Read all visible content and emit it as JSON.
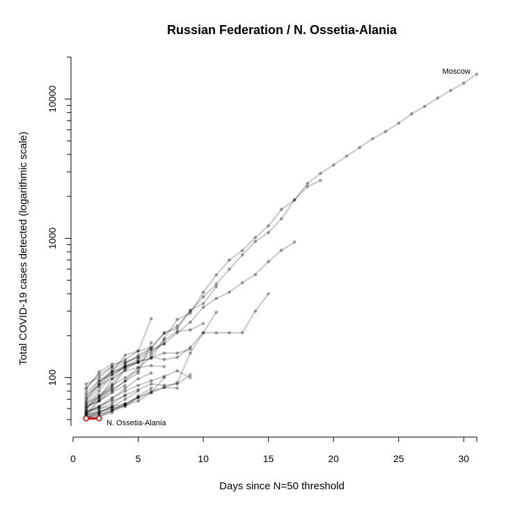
{
  "chart_data": {
    "type": "line",
    "title": "Russian Federation / N. Ossetia-Alania",
    "xlabel": "Days since N=50 threshold",
    "ylabel": "Total COVID-19 cases detected (logarithmic scale)",
    "y_scale": "log",
    "xlim": [
      0,
      31
    ],
    "ylim": [
      45,
      20000
    ],
    "x_ticks": [
      "0",
      "5",
      "10",
      "15",
      "20",
      "25",
      "30"
    ],
    "y_ticks": [
      "100",
      "1000",
      "10000"
    ],
    "grid": false,
    "highlight_color": "#cc0000",
    "series_color": "#000000",
    "annotations": {
      "top_series": "Moscow",
      "highlight_series": "N. Ossetia-Alania"
    },
    "series": [
      {
        "name": "Moscow",
        "x": [
          1,
          2,
          3,
          4,
          5,
          6,
          7,
          8,
          9,
          10,
          11,
          12,
          13,
          14,
          15,
          16,
          17,
          18,
          19,
          20,
          21,
          22,
          23,
          24,
          25,
          26,
          27,
          28,
          29,
          30,
          31
        ],
        "y": [
          53,
          68,
          86,
          114,
          131,
          137,
          191,
          262,
          290,
          410,
          546,
          698,
          817,
          1014,
          1226,
          1613,
          1880,
          2475,
          2923,
          3357,
          3893,
          4484,
          5181,
          5841,
          6698,
          7822,
          8852,
          10158,
          11513,
          13002,
          15057
        ]
      },
      {
        "name": "N. Ossetia-Alania",
        "highlight": true,
        "x": [
          1,
          2
        ],
        "y": [
          51,
          51
        ]
      },
      {
        "x": [
          1,
          2,
          3,
          4,
          5,
          6,
          7,
          8,
          9,
          10,
          11,
          12,
          13,
          14,
          15,
          16,
          17,
          18,
          19
        ],
        "y": [
          55,
          70,
          98,
          125,
          145,
          162,
          208,
          235,
          300,
          380,
          470,
          600,
          760,
          950,
          1100,
          1380,
          1890,
          2350,
          2600
        ]
      },
      {
        "x": [
          1,
          2,
          3,
          4,
          5,
          6,
          7,
          8,
          9,
          10,
          11,
          12,
          13,
          14,
          15,
          16,
          17
        ],
        "y": [
          60,
          80,
          105,
          120,
          135,
          155,
          175,
          210,
          250,
          320,
          370,
          410,
          480,
          550,
          680,
          820,
          940
        ]
      },
      {
        "x": [
          1,
          2,
          3,
          4,
          5,
          6,
          7,
          8,
          9,
          10,
          11,
          12,
          13,
          14,
          15
        ],
        "y": [
          52,
          56,
          62,
          65,
          72,
          80,
          85,
          92,
          150,
          210,
          210,
          210,
          210,
          300,
          400
        ]
      },
      {
        "x": [
          1,
          2,
          3,
          4,
          5,
          6,
          7,
          8,
          9,
          10,
          11
        ],
        "y": [
          65,
          85,
          110,
          145,
          155,
          165,
          210,
          225,
          305,
          340,
          450
        ]
      },
      {
        "x": [
          1,
          2,
          3,
          4,
          5,
          6,
          7,
          8,
          9,
          10
        ],
        "y": [
          58,
          75,
          90,
          118,
          130,
          148,
          185,
          215,
          220,
          245
        ]
      },
      {
        "x": [
          1,
          2,
          3,
          4,
          5,
          6,
          7,
          8,
          9,
          10,
          11
        ],
        "y": [
          62,
          68,
          80,
          95,
          118,
          140,
          135,
          140,
          165,
          210,
          295
        ]
      },
      {
        "x": [
          1,
          2,
          3,
          4,
          5,
          6,
          7,
          8,
          9
        ],
        "y": [
          72,
          95,
          105,
          120,
          128,
          140,
          150,
          150,
          160
        ]
      },
      {
        "x": [
          1,
          2,
          3,
          4,
          5,
          6,
          7,
          8,
          9
        ],
        "y": [
          56,
          62,
          72,
          80,
          88,
          95,
          102,
          112,
          100
        ]
      },
      {
        "x": [
          1,
          2,
          3,
          4,
          5,
          6,
          7,
          8,
          9
        ],
        "y": [
          55,
          60,
          65,
          75,
          82,
          90,
          88,
          90,
          105
        ]
      },
      {
        "x": [
          1,
          2,
          3,
          4,
          5,
          6,
          7,
          8
        ],
        "y": [
          50,
          52,
          58,
          64,
          72,
          78,
          85,
          84
        ]
      },
      {
        "x": [
          1,
          2,
          3,
          4,
          5,
          6,
          7
        ],
        "y": [
          68,
          90,
          115,
          128,
          140,
          160,
          175
        ]
      },
      {
        "x": [
          1,
          2,
          3,
          4,
          5,
          6,
          7
        ],
        "y": [
          75,
          88,
          98,
          112,
          118,
          122,
          120
        ]
      },
      {
        "x": [
          1,
          2,
          3,
          4,
          5,
          6,
          7
        ],
        "y": [
          54,
          57,
          60,
          63,
          68,
          78,
          100
        ]
      },
      {
        "x": [
          1,
          2,
          3,
          4,
          5,
          6
        ],
        "y": [
          90,
          100,
          120,
          135,
          155,
          265
        ]
      },
      {
        "x": [
          1,
          2,
          3,
          4,
          5,
          6
        ],
        "y": [
          60,
          72,
          82,
          94,
          108,
          178
        ]
      },
      {
        "x": [
          1,
          2,
          3,
          4,
          5,
          6
        ],
        "y": [
          56,
          62,
          70,
          84,
          98,
          108
        ]
      },
      {
        "x": [
          1,
          2,
          3,
          4,
          5,
          6
        ],
        "y": [
          52,
          54,
          58,
          64,
          74,
          84
        ]
      },
      {
        "x": [
          1,
          2,
          3,
          4,
          5
        ],
        "y": [
          82,
          110,
          125,
          130,
          140
        ]
      },
      {
        "x": [
          1,
          2,
          3,
          4,
          5
        ],
        "y": [
          70,
          90,
          110,
          122,
          128
        ]
      },
      {
        "x": [
          1,
          2,
          3,
          4,
          5
        ],
        "y": [
          64,
          72,
          88,
          100,
          112
        ]
      },
      {
        "x": [
          1,
          2,
          3,
          4,
          5
        ],
        "y": [
          54,
          56,
          62,
          70,
          80
        ]
      },
      {
        "x": [
          1,
          2,
          3,
          4,
          5
        ],
        "y": [
          52,
          55,
          58,
          62,
          72
        ]
      },
      {
        "x": [
          1,
          2,
          3,
          4
        ],
        "y": [
          78,
          95,
          110,
          118
        ]
      },
      {
        "x": [
          1,
          2,
          3,
          4
        ],
        "y": [
          62,
          68,
          78,
          88
        ]
      },
      {
        "x": [
          1,
          2,
          3,
          4
        ],
        "y": [
          57,
          62,
          68,
          74
        ]
      },
      {
        "x": [
          1,
          2,
          3,
          4
        ],
        "y": [
          53,
          58,
          60,
          65
        ]
      },
      {
        "x": [
          1,
          2,
          3
        ],
        "y": [
          85,
          105,
          120
        ]
      },
      {
        "x": [
          1,
          2,
          3
        ],
        "y": [
          66,
          74,
          84
        ]
      },
      {
        "x": [
          1,
          2,
          3
        ],
        "y": [
          58,
          60,
          62
        ]
      },
      {
        "x": [
          1,
          2,
          3
        ],
        "y": [
          52,
          53,
          56
        ]
      }
    ]
  }
}
